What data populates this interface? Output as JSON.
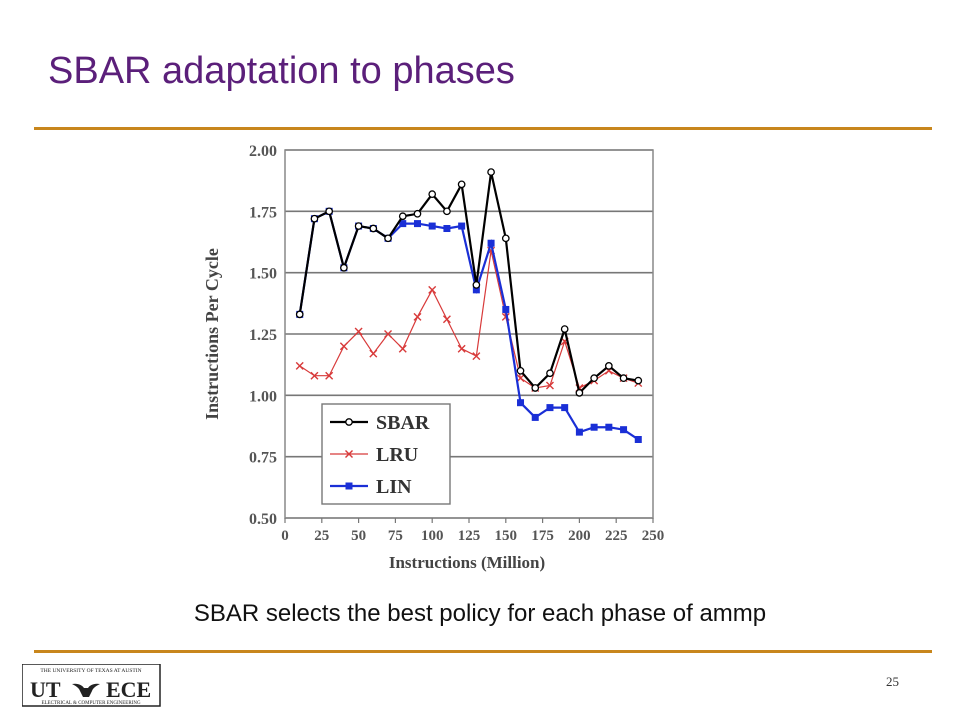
{
  "slide": {
    "title": "SBAR adaptation to phases",
    "caption": "SBAR selects the best policy for each phase of ammp",
    "page_number": "25"
  },
  "logo": {
    "top_text": "THE UNIVERSITY OF TEXAS AT AUSTIN",
    "left_text": "UT",
    "right_text": "ECE",
    "bottom_text": "ELECTRICAL & COMPUTER ENGINEERING"
  },
  "colors": {
    "title": "#5b1f7a",
    "rule": "#c8861c",
    "sbar": "#000000",
    "lru": "#d83a3a",
    "lin": "#1a2fd6"
  },
  "chart_data": {
    "type": "line",
    "xlabel": "Instructions (Million)",
    "ylabel": "Instructions Per Cycle",
    "xlim": [
      0,
      250
    ],
    "ylim": [
      0.5,
      2.0
    ],
    "xticks": [
      "0",
      "25",
      "50",
      "75",
      "100",
      "125",
      "150",
      "175",
      "200",
      "225",
      "250"
    ],
    "yticks": [
      "0.50",
      "0.75",
      "1.00",
      "1.25",
      "1.50",
      "1.75",
      "2.00"
    ],
    "grid": "horizontal",
    "legend_position": "bottom-left",
    "x": [
      10,
      20,
      30,
      40,
      50,
      60,
      70,
      80,
      90,
      100,
      110,
      120,
      130,
      140,
      150,
      160,
      170,
      180,
      190,
      200,
      210,
      220,
      230,
      240
    ],
    "series": [
      {
        "name": "SBAR",
        "marker": "open-circle",
        "color": "#000000",
        "values": [
          1.33,
          1.72,
          1.75,
          1.52,
          1.69,
          1.68,
          1.64,
          1.73,
          1.74,
          1.82,
          1.75,
          1.86,
          1.45,
          1.91,
          1.64,
          1.1,
          1.03,
          1.09,
          1.27,
          1.01,
          1.07,
          1.12,
          1.07,
          1.06
        ]
      },
      {
        "name": "LRU",
        "marker": "x",
        "color": "#d83a3a",
        "values": [
          1.12,
          1.08,
          1.08,
          1.2,
          1.26,
          1.17,
          1.25,
          1.19,
          1.32,
          1.43,
          1.31,
          1.19,
          1.16,
          1.59,
          1.32,
          1.07,
          1.03,
          1.04,
          1.22,
          1.03,
          1.06,
          1.1,
          1.07,
          1.05
        ]
      },
      {
        "name": "LIN",
        "marker": "filled-square",
        "color": "#1a2fd6",
        "values": [
          1.33,
          1.72,
          1.75,
          1.52,
          1.69,
          1.68,
          1.64,
          1.7,
          1.7,
          1.69,
          1.68,
          1.69,
          1.43,
          1.62,
          1.35,
          0.97,
          0.91,
          0.95,
          0.95,
          0.85,
          0.87,
          0.87,
          0.86,
          0.82
        ]
      }
    ]
  }
}
